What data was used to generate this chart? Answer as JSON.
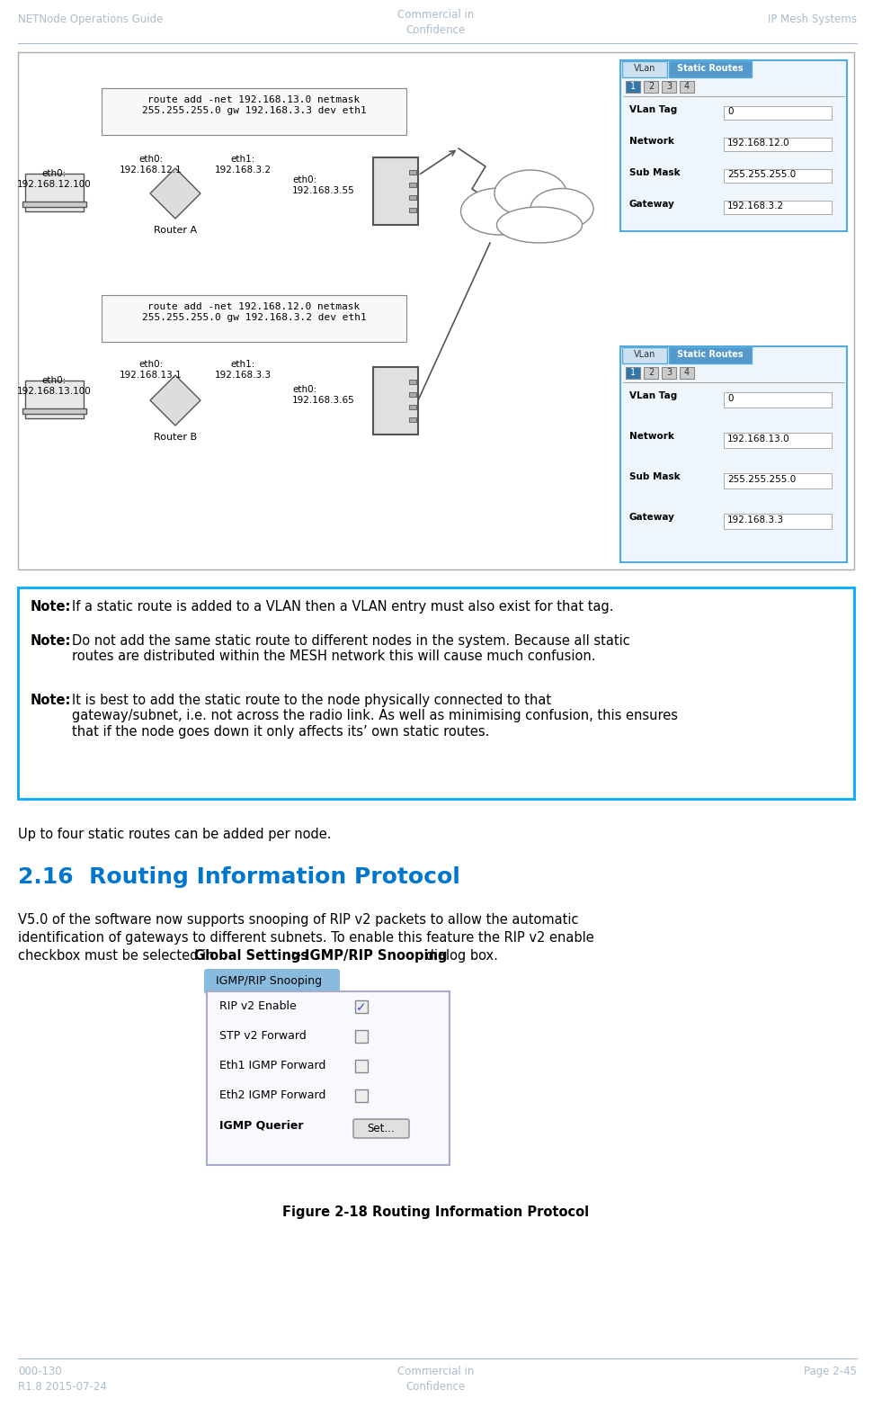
{
  "header_left": "NETNode Operations Guide",
  "header_center": "Commercial in\nConfidence",
  "header_right": "IP Mesh Systems",
  "footer_left": "000-130\nR1.8 2015-07-24",
  "footer_center": "Commercial in\nConfidence",
  "footer_right": "Page 2-45",
  "note_box_color": "#00aaff",
  "para1": "Up to four static routes can be added per node.",
  "section_title": "2.16  Routing Information Protocol",
  "section_color": "#0077cc",
  "figure_caption_bold": "Figure 2-18",
  "figure_caption_text": " Routing Information Protocol",
  "bg_color": "#ffffff",
  "header_color": "#aabbcc",
  "cmd_top": "route add -net 192.168.13.0 netmask\n255.255.255.0 gw 192.168.3.3 dev eth1",
  "cmd_bot": "route add -net 192.168.12.0 netmask\n255.255.255.0 gw 192.168.3.2 dev eth1",
  "vlan1_fields": [
    [
      "VLan Tag",
      "0"
    ],
    [
      "Network",
      "192.168.12.0"
    ],
    [
      "Sub Mask",
      "255.255.255.0"
    ],
    [
      "Gateway",
      "192.168.3.2"
    ]
  ],
  "vlan2_fields": [
    [
      "VLan Tag",
      "0"
    ],
    [
      "Network",
      "192.168.13.0"
    ],
    [
      "Sub Mask",
      "255.255.255.0"
    ],
    [
      "Gateway",
      "192.168.3.3"
    ]
  ],
  "igmp_rows": [
    [
      "RIP v2 Enable",
      true
    ],
    [
      "STP v2 Forward",
      false
    ],
    [
      "Eth1 IGMP Forward",
      false
    ],
    [
      "Eth2 IGMP Forward",
      false
    ]
  ]
}
